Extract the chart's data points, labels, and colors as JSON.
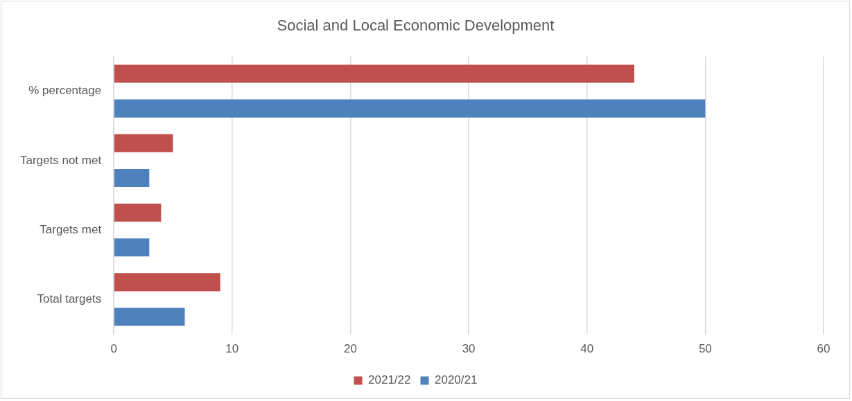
{
  "chart_data": {
    "type": "bar",
    "orientation": "horizontal",
    "title": "Social and Local Economic Development",
    "categories": [
      "% percentage",
      "Targets not met",
      "Targets met",
      "Total targets"
    ],
    "series": [
      {
        "name": "2021/22",
        "color": "#c0504d",
        "values": [
          44,
          5,
          4,
          9
        ]
      },
      {
        "name": "2020/21",
        "color": "#4f81bd",
        "values": [
          50,
          3,
          3,
          6
        ]
      }
    ],
    "xlim": [
      0,
      60
    ],
    "xticks": [
      0,
      10,
      20,
      30,
      40,
      50,
      60
    ],
    "grid": "x",
    "legend": "bottom"
  }
}
